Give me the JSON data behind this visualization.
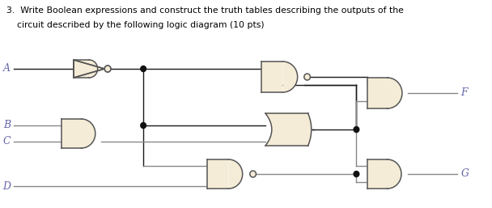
{
  "title_line1": "3.  Write Boolean expressions and construct the truth tables describing the outputs of the",
  "title_line2": "circuit described by the following logic diagram (10 pts)",
  "gate_fill": "#f5ecd7",
  "gate_edge": "#555555",
  "line_color": "#555555",
  "wire_color_dark": "#111111",
  "label_color": "#6666aa",
  "background": "#ffffff",
  "inputs": [
    "A",
    "B",
    "C",
    "D"
  ],
  "outputs": [
    "F",
    "G"
  ]
}
